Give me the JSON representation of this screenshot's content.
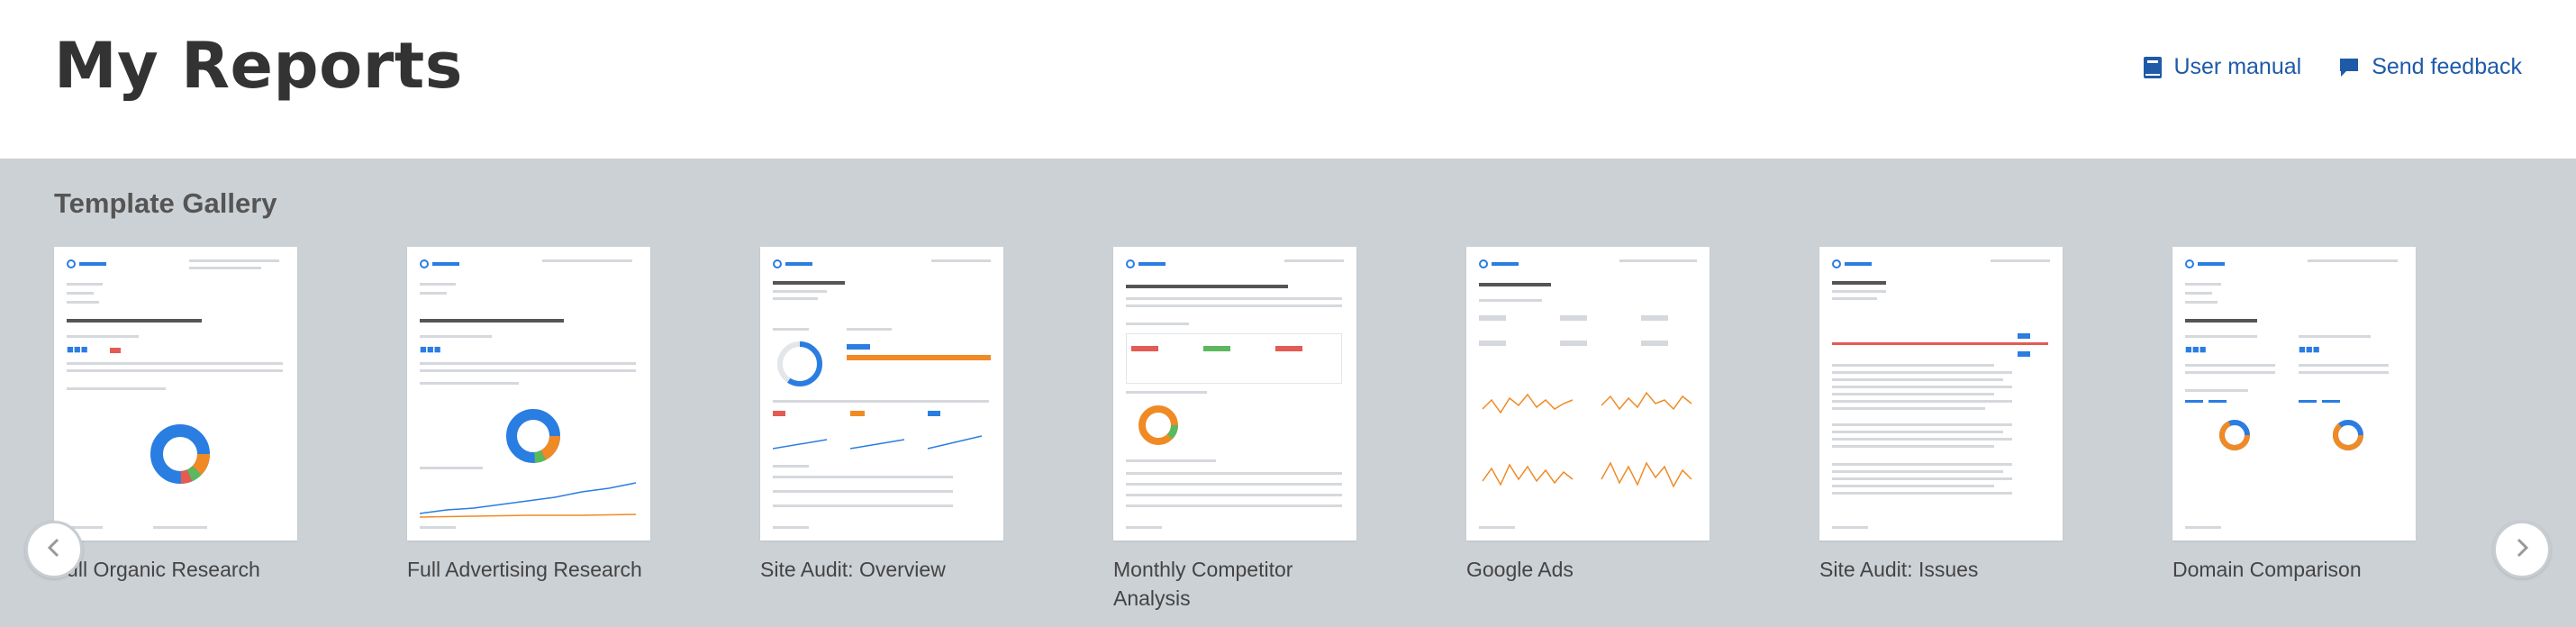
{
  "header": {
    "title": "My Reports",
    "user_manual": "User manual",
    "send_feedback": "Send feedback"
  },
  "gallery": {
    "title": "Template Gallery",
    "cards": [
      {
        "label": "Full Organic Research"
      },
      {
        "label": "Full Advertising Research"
      },
      {
        "label": "Site Audit: Overview"
      },
      {
        "label": "Monthly Competitor Analysis"
      },
      {
        "label": "Google Ads"
      },
      {
        "label": "Site Audit: Issues"
      },
      {
        "label": "Domain Comparison"
      }
    ]
  },
  "colors": {
    "accent": "#1e5aa8",
    "gallery_bg": "#ccd1d5",
    "chart_blue": "#2a7de1",
    "chart_orange": "#f08a24",
    "chart_red": "#e35b52",
    "chart_green": "#5cb85c"
  },
  "icons": {
    "user_manual": "book-icon",
    "send_feedback": "speech-bubble-icon",
    "prev": "chevron-left-icon",
    "next": "chevron-right-icon"
  }
}
